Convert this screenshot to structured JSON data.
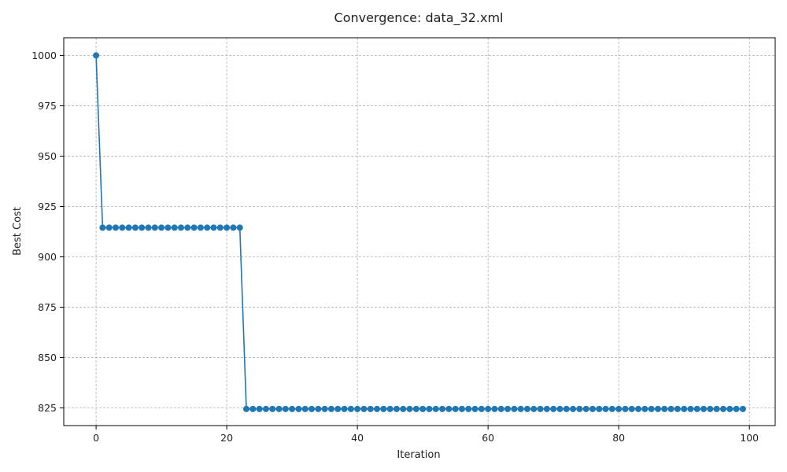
{
  "chart_data": {
    "type": "line",
    "title": "Convergence: data_32.xml",
    "xlabel": "Iteration",
    "ylabel": "Best Cost",
    "xlim": [
      -4.95,
      103.95
    ],
    "ylim": [
      816.25,
      1008.75
    ],
    "xticks": [
      0,
      20,
      40,
      60,
      80,
      100
    ],
    "yticks": [
      825,
      850,
      875,
      900,
      925,
      950,
      975,
      1000
    ],
    "grid": true,
    "color": "#1f77b4",
    "marker": "circle",
    "x": [
      0,
      1,
      2,
      3,
      4,
      5,
      6,
      7,
      8,
      9,
      10,
      11,
      12,
      13,
      14,
      15,
      16,
      17,
      18,
      19,
      20,
      21,
      22,
      23,
      24,
      25,
      26,
      27,
      28,
      29,
      30,
      31,
      32,
      33,
      34,
      35,
      36,
      37,
      38,
      39,
      40,
      41,
      42,
      43,
      44,
      45,
      46,
      47,
      48,
      49,
      50,
      51,
      52,
      53,
      54,
      55,
      56,
      57,
      58,
      59,
      60,
      61,
      62,
      63,
      64,
      65,
      66,
      67,
      68,
      69,
      70,
      71,
      72,
      73,
      74,
      75,
      76,
      77,
      78,
      79,
      80,
      81,
      82,
      83,
      84,
      85,
      86,
      87,
      88,
      89,
      90,
      91,
      92,
      93,
      94,
      95,
      96,
      97,
      98,
      99
    ],
    "y": [
      1000,
      914.5,
      914.5,
      914.5,
      914.5,
      914.5,
      914.5,
      914.5,
      914.5,
      914.5,
      914.5,
      914.5,
      914.5,
      914.5,
      914.5,
      914.5,
      914.5,
      914.5,
      914.5,
      914.5,
      914.5,
      914.5,
      914.5,
      824.5,
      824.5,
      824.5,
      824.5,
      824.5,
      824.5,
      824.5,
      824.5,
      824.5,
      824.5,
      824.5,
      824.5,
      824.5,
      824.5,
      824.5,
      824.5,
      824.5,
      824.5,
      824.5,
      824.5,
      824.5,
      824.5,
      824.5,
      824.5,
      824.5,
      824.5,
      824.5,
      824.5,
      824.5,
      824.5,
      824.5,
      824.5,
      824.5,
      824.5,
      824.5,
      824.5,
      824.5,
      824.5,
      824.5,
      824.5,
      824.5,
      824.5,
      824.5,
      824.5,
      824.5,
      824.5,
      824.5,
      824.5,
      824.5,
      824.5,
      824.5,
      824.5,
      824.5,
      824.5,
      824.5,
      824.5,
      824.5,
      824.5,
      824.5,
      824.5,
      824.5,
      824.5,
      824.5,
      824.5,
      824.5,
      824.5,
      824.5,
      824.5,
      824.5,
      824.5,
      824.5,
      824.5,
      824.5,
      824.5,
      824.5,
      824.5,
      824.5
    ]
  }
}
